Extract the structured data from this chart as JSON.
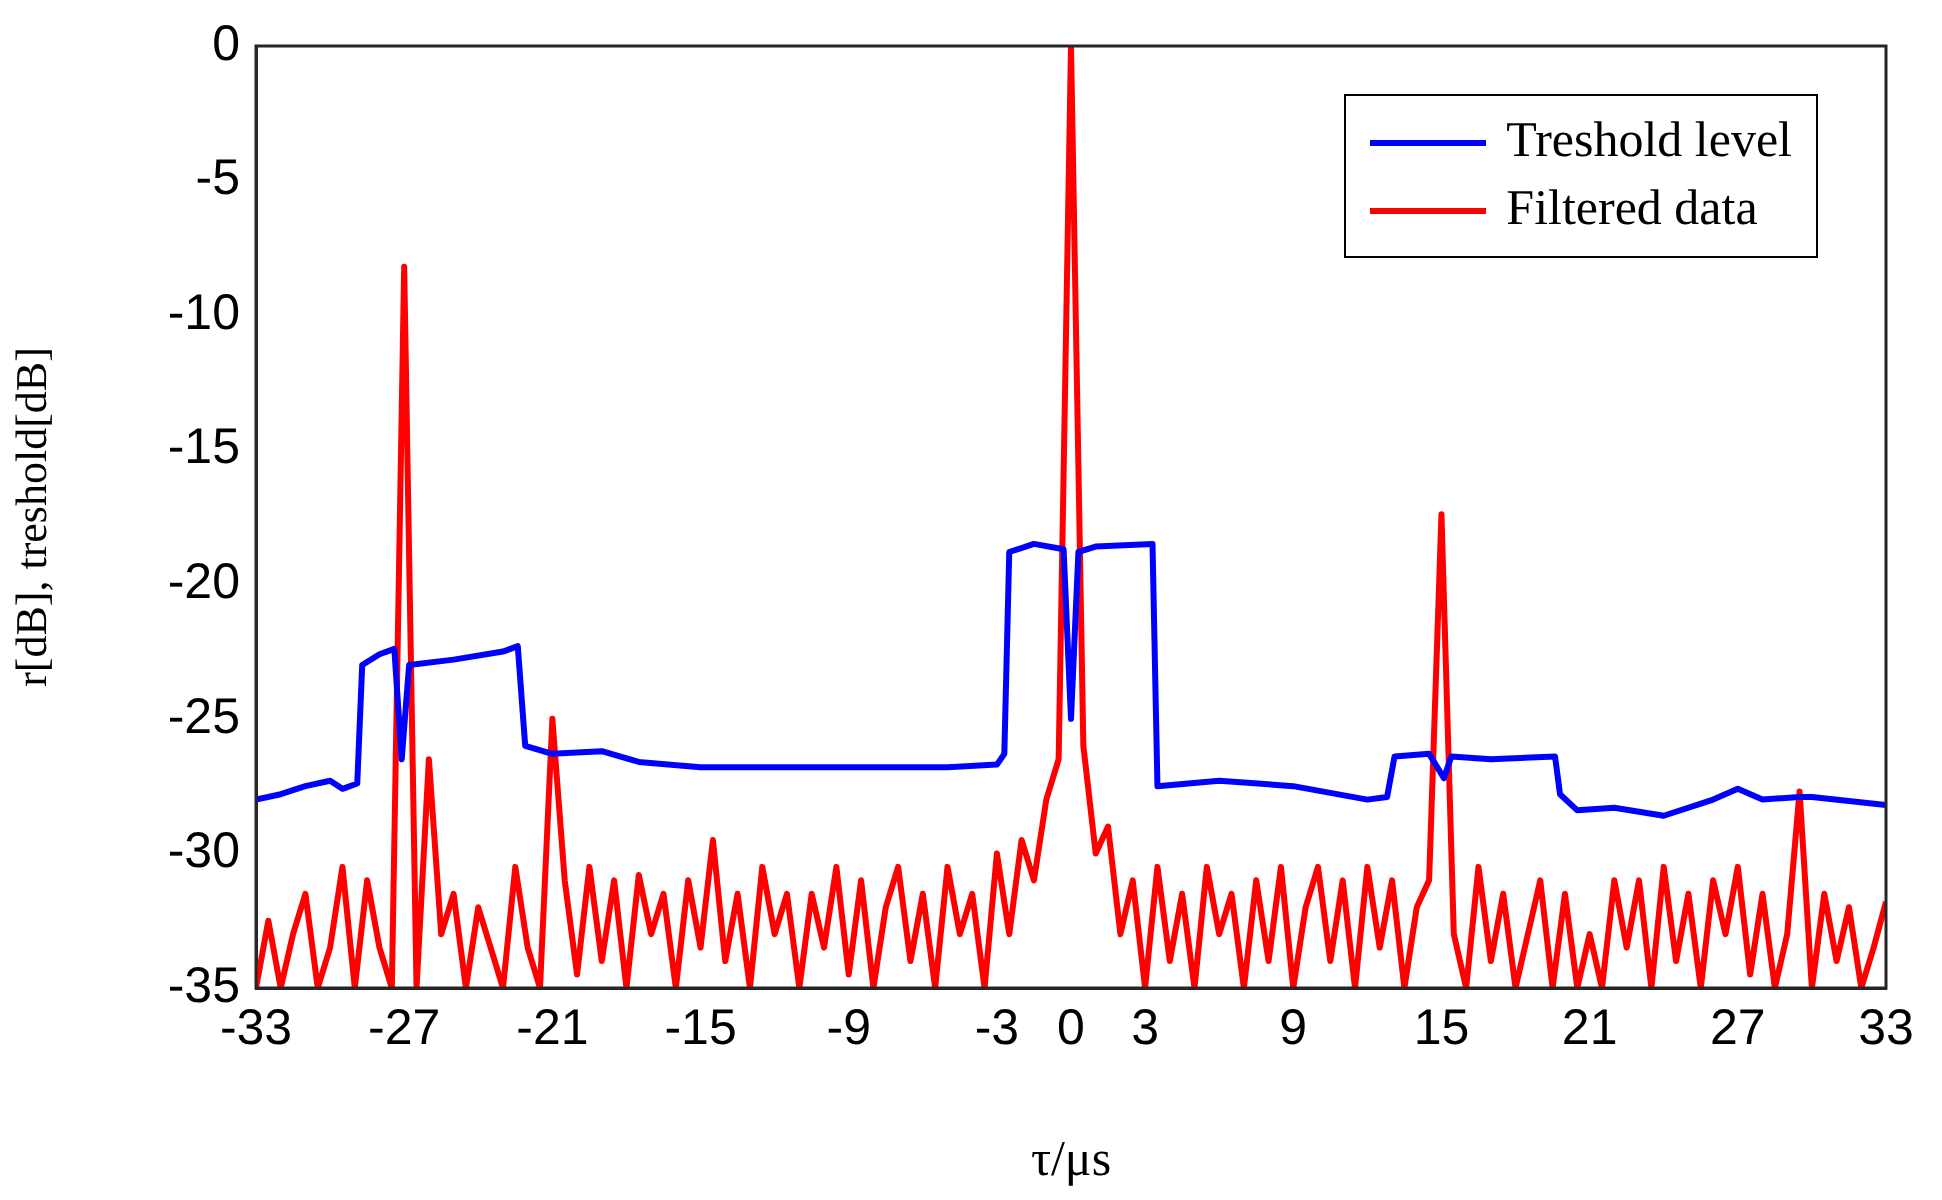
{
  "chart_data": {
    "type": "line",
    "xlabel": "τ/μs",
    "ylabel": "r[dB], treshold[dB]",
    "xlim": [
      -33,
      33
    ],
    "xticks": [
      -33,
      -27,
      -21,
      -15,
      -9,
      -3,
      0,
      3,
      9,
      15,
      21,
      27,
      33
    ],
    "ylim": [
      -35,
      0
    ],
    "yticks": [
      -35,
      -30,
      -25,
      -20,
      -15,
      -10,
      -5,
      0
    ],
    "grid": false,
    "legend": "top right",
    "marker": "none",
    "line_style": "solid",
    "series": [
      {
        "name": "Treshold level",
        "color": "#0000ff",
        "x": [
          -33,
          -32,
          -31,
          -30,
          -29.5,
          -28.9,
          -28.7,
          -28,
          -27.4,
          -27.1,
          -26.8,
          -25,
          -23,
          -22.4,
          -22.1,
          -21,
          -19,
          -17.5,
          -15,
          -10,
          -5,
          -3,
          -2.7,
          -2.5,
          -1.5,
          -0.3,
          0,
          0.3,
          1,
          3.3,
          3.5,
          6,
          9,
          12,
          12.8,
          13.1,
          14.5,
          15.1,
          15.4,
          17,
          19.6,
          19.8,
          20.5,
          22,
          24,
          26,
          27,
          28,
          29.5,
          30,
          33
        ],
        "values": [
          -28,
          -27.8,
          -27.5,
          -27.3,
          -27.6,
          -27.4,
          -23,
          -22.6,
          -22.4,
          -26.5,
          -23,
          -22.8,
          -22.5,
          -22.3,
          -26,
          -26.3,
          -26.2,
          -26.6,
          -26.8,
          -26.8,
          -26.8,
          -26.7,
          -26.3,
          -18.8,
          -18.5,
          -18.7,
          -25,
          -18.8,
          -18.6,
          -18.5,
          -27.5,
          -27.3,
          -27.5,
          -28,
          -27.9,
          -26.4,
          -26.3,
          -27.2,
          -26.4,
          -26.5,
          -26.4,
          -27.8,
          -28.4,
          -28.3,
          -28.6,
          -28,
          -27.6,
          -28,
          -27.9,
          -27.9,
          -28.2
        ]
      },
      {
        "name": "Filtered data",
        "color": "#ff0000",
        "x": [
          -33,
          -32.5,
          -32,
          -31.5,
          -31,
          -30.5,
          -30,
          -29.5,
          -29,
          -28.5,
          -28,
          -27.5,
          -27,
          -26.5,
          -26,
          -25.5,
          -25,
          -24.5,
          -24,
          -23.5,
          -23,
          -22.5,
          -22,
          -21.5,
          -21,
          -20.5,
          -20,
          -19.5,
          -19,
          -18.5,
          -18,
          -17.5,
          -17,
          -16.5,
          -16,
          -15.5,
          -15,
          -14.5,
          -14,
          -13.5,
          -13,
          -12.5,
          -12,
          -11.5,
          -11,
          -10.5,
          -10,
          -9.5,
          -9,
          -8.5,
          -8,
          -7.5,
          -7,
          -6.5,
          -6,
          -5.5,
          -5,
          -4.5,
          -4,
          -3.5,
          -3,
          -2.5,
          -2,
          -1.5,
          -1,
          -0.5,
          0,
          0.5,
          1,
          1.5,
          2,
          2.5,
          3,
          3.5,
          4,
          4.5,
          5,
          5.5,
          6,
          6.5,
          7,
          7.5,
          8,
          8.5,
          9,
          9.5,
          10,
          10.5,
          11,
          11.5,
          12,
          12.5,
          13,
          13.5,
          14,
          14.5,
          15,
          15.5,
          16,
          16.5,
          17,
          17.5,
          18,
          18.5,
          19,
          19.5,
          20,
          20.5,
          21,
          21.5,
          22,
          22.5,
          23,
          23.5,
          24,
          24.5,
          25,
          25.5,
          26,
          26.5,
          27,
          27.5,
          28,
          28.5,
          29,
          29.5,
          30,
          30.5,
          31,
          31.5,
          32,
          32.5,
          33
        ],
        "values": [
          -35,
          -32.5,
          -35,
          -33,
          -31.5,
          -35,
          -33.5,
          -30.5,
          -35,
          -31,
          -33.5,
          -35,
          -8.2,
          -35,
          -26.5,
          -33,
          -31.5,
          -35,
          -32,
          -33.5,
          -35,
          -30.5,
          -33.5,
          -35,
          -25,
          -31,
          -34.5,
          -30.5,
          -34,
          -31,
          -35,
          -30.8,
          -33,
          -31.5,
          -35,
          -31,
          -33.5,
          -29.5,
          -34,
          -31.5,
          -35,
          -30.5,
          -33,
          -31.5,
          -35,
          -31.5,
          -33.5,
          -30.5,
          -34.5,
          -31,
          -35,
          -32,
          -30.5,
          -34,
          -31.5,
          -35,
          -30.5,
          -33,
          -31.5,
          -35,
          -30,
          -33,
          -29.5,
          -31,
          -28,
          -26.5,
          0,
          -26,
          -30,
          -29,
          -33,
          -31,
          -35,
          -30.5,
          -34,
          -31.5,
          -35,
          -30.5,
          -33,
          -31.5,
          -35,
          -31,
          -34,
          -30.5,
          -35,
          -32,
          -30.5,
          -34,
          -31,
          -35,
          -30.5,
          -33.5,
          -31,
          -35,
          -32,
          -31,
          -17.4,
          -33,
          -35,
          -30.5,
          -34,
          -31.5,
          -35,
          -33,
          -31,
          -35,
          -31.5,
          -35,
          -33,
          -35,
          -31,
          -33.5,
          -31,
          -35,
          -30.5,
          -34,
          -31.5,
          -35,
          -31,
          -33,
          -30.5,
          -34.5,
          -31.5,
          -35,
          -33,
          -27.7,
          -35,
          -31.5,
          -34,
          -32,
          -35,
          -33.5,
          -31.8
        ]
      }
    ]
  }
}
